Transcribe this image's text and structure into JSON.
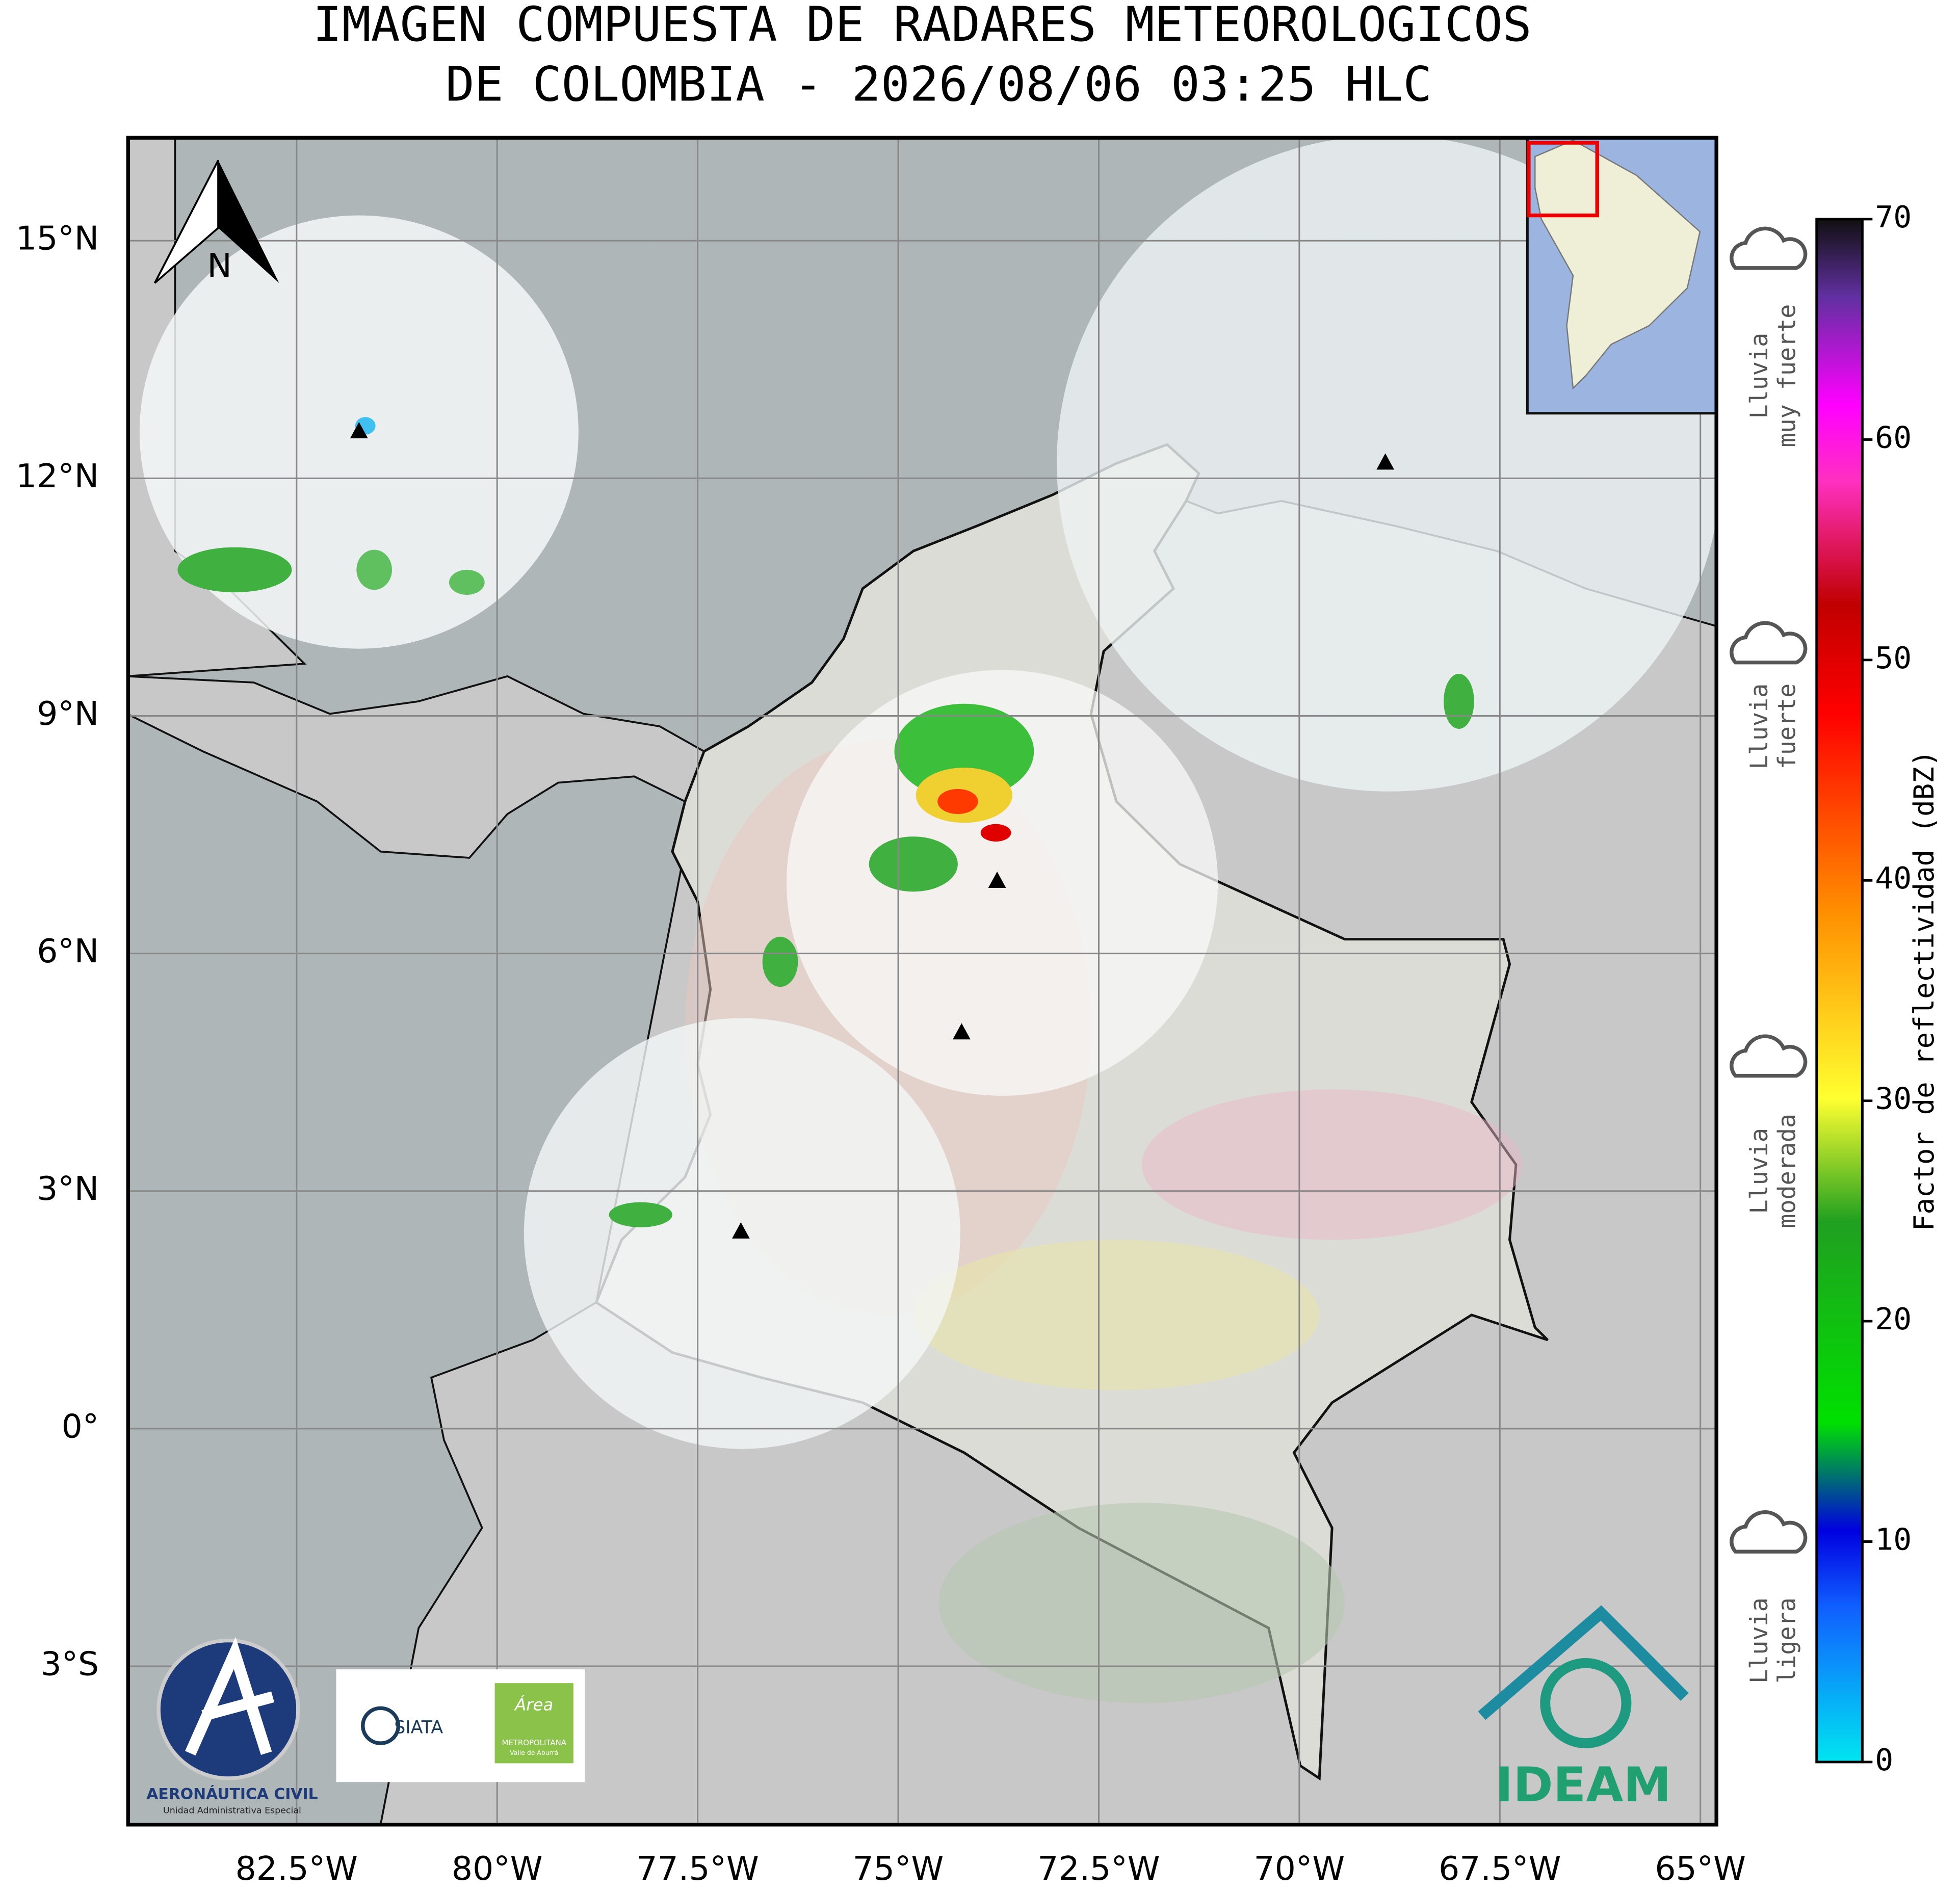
{
  "title": [
    "IMAGEN COMPUESTA DE RADARES METEOROLOGICOS",
    "DE COLOMBIA - 2026/08/06 03:25 HLC"
  ],
  "map": {
    "xlim": [
      -84.6,
      -64.8
    ],
    "ylim": [
      -5,
      16.3
    ],
    "grid": true,
    "north_arrow": "N",
    "xticks": [
      {
        "value": -82.5,
        "label": "82.5°W"
      },
      {
        "value": -80,
        "label": "80°W"
      },
      {
        "value": -77.5,
        "label": "77.5°W"
      },
      {
        "value": -75,
        "label": "75°W"
      },
      {
        "value": -72.5,
        "label": "72.5°W"
      },
      {
        "value": -70,
        "label": "70°W"
      },
      {
        "value": -67.5,
        "label": "67.5°W"
      },
      {
        "value": -65,
        "label": "65°W"
      }
    ],
    "yticks": [
      {
        "value": -3,
        "label": "3°S"
      },
      {
        "value": 0,
        "label": "0°"
      },
      {
        "value": 3,
        "label": "3°N"
      },
      {
        "value": 6,
        "label": "6°N"
      },
      {
        "value": 9,
        "label": "9°N"
      },
      {
        "value": 12,
        "label": "12°N"
      },
      {
        "value": 15,
        "label": "15°N"
      }
    ]
  },
  "colorbar": {
    "label": "Factor de reflectividad (dBZ)",
    "lim": [
      0,
      70
    ],
    "ticks": [
      0,
      10,
      20,
      30,
      40,
      50,
      60,
      70
    ]
  },
  "rain_categories": [
    {
      "lines": [
        "Lluvia",
        "muy fuerte"
      ]
    },
    {
      "lines": [
        "Lluvia",
        "fuerte"
      ]
    },
    {
      "lines": [
        "Lluvia",
        "moderada"
      ]
    },
    {
      "lines": [
        "Lluvia",
        "ligera"
      ]
    }
  ],
  "logos": {
    "aerocivil": [
      "AERONÁUTICA CIVIL",
      "Unidad Administrativa Especial"
    ],
    "siata": "SIATA",
    "area": [
      "Área",
      "METROPOLITANA",
      "Valle de Aburrá"
    ],
    "ideam": "IDEAM"
  }
}
